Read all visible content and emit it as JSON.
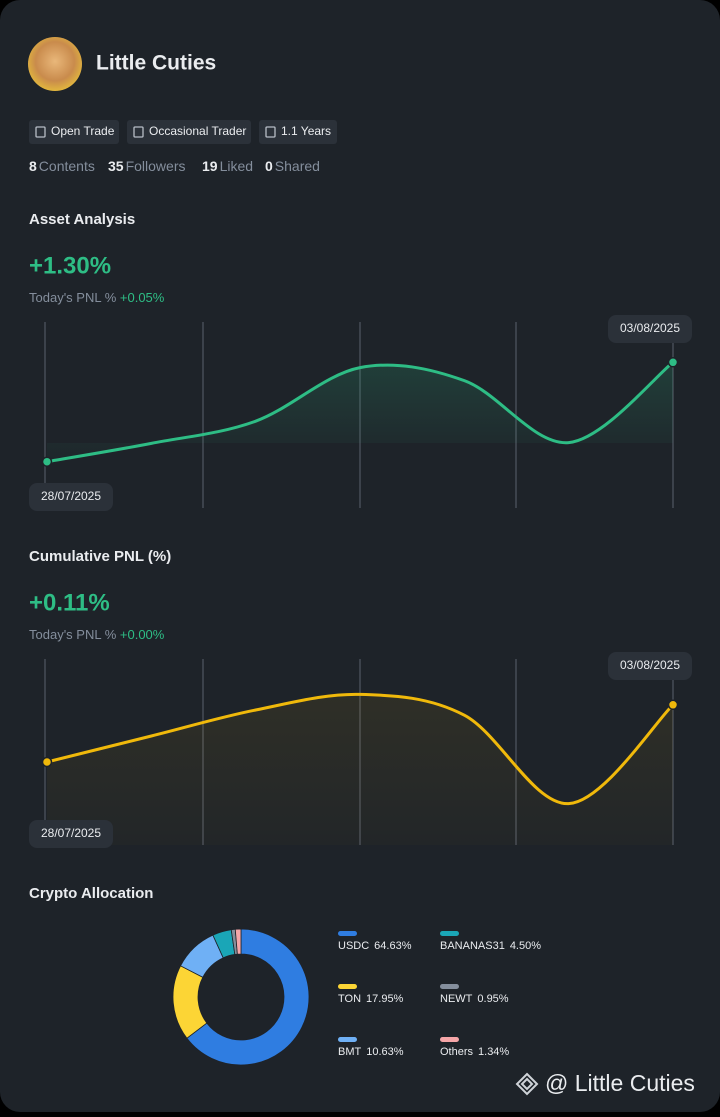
{
  "profile": {
    "name": "Little Cuties",
    "tags": [
      "Open Trade",
      "Occasional Trader",
      "1.1 Years"
    ],
    "stats": [
      {
        "value": 8,
        "label": "Contents"
      },
      {
        "value": 35,
        "label": "Followers"
      },
      {
        "value": 19,
        "label": "Liked"
      },
      {
        "value": 0,
        "label": "Shared"
      }
    ]
  },
  "asset_analysis": {
    "title": "Asset Analysis",
    "value": "+1.30%",
    "pnl_label": "Today's PNL %",
    "pnl_value": "+0.05%",
    "chart_data": {
      "type": "line",
      "categories": [
        "28/07/2025",
        null,
        null,
        null,
        null,
        null,
        "03/08/2025"
      ],
      "values": [
        0,
        0.24,
        0.53,
        1.23,
        1.06,
        0.25,
        1.3
      ],
      "color": "#2ebd85",
      "ylim": [
        -0.2,
        1.5
      ]
    }
  },
  "cumulative_pnl": {
    "title": "Cumulative PNL (%)",
    "value": "+0.11%",
    "pnl_label": "Today's PNL %",
    "pnl_value": "+0.00%",
    "chart_data": {
      "type": "line",
      "categories": [
        "28/07/2025",
        null,
        null,
        null,
        null,
        null,
        "03/08/2025"
      ],
      "values": [
        0,
        0.05,
        0.1,
        0.13,
        0.09,
        -0.08,
        0.11
      ],
      "color": "#f0b90b",
      "ylim": [
        -0.1,
        0.15
      ]
    }
  },
  "crypto_allocation": {
    "title": "Crypto Allocation",
    "chart_data": {
      "type": "pie",
      "categories": [
        "USDC",
        "TON",
        "BMT",
        "BANANAS31",
        "NEWT",
        "Others"
      ],
      "values": [
        64.63,
        17.95,
        10.63,
        4.5,
        0.95,
        1.34
      ],
      "value_labels": [
        "64.63%",
        "17.95%",
        "10.63%",
        "4.50%",
        "0.95%",
        "1.34%"
      ],
      "colors": [
        "#2f7de1",
        "#fcd535",
        "#6fb0f5",
        "#1aa6b7",
        "#848e9c",
        "#f6a6a8"
      ]
    }
  },
  "watermark": "@ Little Cuties"
}
